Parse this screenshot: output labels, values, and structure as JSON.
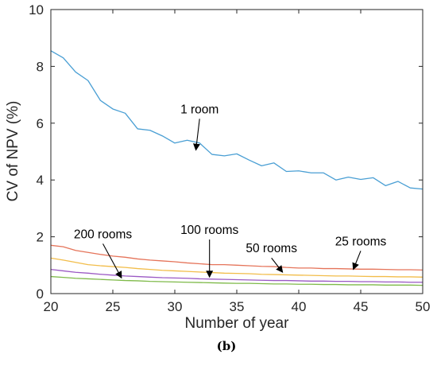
{
  "chart_data": {
    "type": "line",
    "xlabel": "Number of year",
    "ylabel": "CV of NPV (%)",
    "caption": "(b)",
    "xlim": [
      20,
      50
    ],
    "ylim": [
      0,
      10
    ],
    "xticks": [
      20,
      25,
      30,
      35,
      40,
      45,
      50
    ],
    "yticks": [
      0,
      2,
      4,
      6,
      8,
      10
    ],
    "grid": false,
    "x": [
      20,
      21,
      22,
      23,
      24,
      25,
      26,
      27,
      28,
      29,
      30,
      31,
      32,
      33,
      34,
      35,
      36,
      37,
      38,
      39,
      40,
      41,
      42,
      43,
      44,
      45,
      46,
      47,
      48,
      49,
      50
    ],
    "series": [
      {
        "color": "#4a9fd4",
        "values": [
          8.55,
          8.3,
          7.8,
          7.5,
          6.8,
          6.5,
          6.35,
          5.8,
          5.75,
          5.55,
          5.3,
          5.4,
          5.3,
          4.9,
          4.85,
          4.92,
          4.7,
          4.5,
          4.6,
          4.3,
          4.32,
          4.25,
          4.25,
          4.0,
          4.1,
          4.02,
          4.08,
          3.8,
          3.95,
          3.72,
          3.68
        ]
      },
      {
        "color": "#e5745a",
        "values": [
          1.7,
          1.65,
          1.52,
          1.45,
          1.38,
          1.32,
          1.28,
          1.22,
          1.18,
          1.15,
          1.12,
          1.08,
          1.05,
          1.02,
          1.02,
          1.0,
          0.98,
          0.96,
          0.95,
          0.92,
          0.9,
          0.9,
          0.88,
          0.88,
          0.87,
          0.86,
          0.86,
          0.85,
          0.84,
          0.84,
          0.83
        ]
      },
      {
        "color": "#f2bd4a",
        "values": [
          1.25,
          1.18,
          1.1,
          1.02,
          0.98,
          0.95,
          0.92,
          0.88,
          0.85,
          0.82,
          0.8,
          0.78,
          0.76,
          0.74,
          0.72,
          0.71,
          0.7,
          0.68,
          0.67,
          0.66,
          0.65,
          0.64,
          0.63,
          0.62,
          0.62,
          0.61,
          0.6,
          0.6,
          0.59,
          0.59,
          0.58
        ]
      },
      {
        "color": "#9b59c4",
        "values": [
          0.85,
          0.8,
          0.75,
          0.72,
          0.68,
          0.65,
          0.62,
          0.6,
          0.58,
          0.56,
          0.55,
          0.54,
          0.52,
          0.51,
          0.5,
          0.49,
          0.48,
          0.47,
          0.46,
          0.46,
          0.45,
          0.44,
          0.44,
          0.43,
          0.43,
          0.42,
          0.42,
          0.41,
          0.41,
          0.4,
          0.4
        ]
      },
      {
        "color": "#7fba4a",
        "values": [
          0.6,
          0.57,
          0.54,
          0.52,
          0.5,
          0.48,
          0.46,
          0.45,
          0.43,
          0.42,
          0.41,
          0.4,
          0.39,
          0.38,
          0.37,
          0.36,
          0.36,
          0.35,
          0.34,
          0.34,
          0.33,
          0.33,
          0.32,
          0.32,
          0.31,
          0.31,
          0.31,
          0.3,
          0.3,
          0.3,
          0.29
        ]
      }
    ],
    "annotations": [
      {
        "text": "1 room",
        "text_at": [
          32.0,
          6.35
        ],
        "arrow_to": [
          31.7,
          5.05
        ]
      },
      {
        "text": "200 rooms",
        "text_at": [
          24.2,
          1.95
        ],
        "arrow_to": [
          25.7,
          0.55
        ]
      },
      {
        "text": "100 rooms",
        "text_at": [
          32.8,
          2.1
        ],
        "arrow_to": [
          32.8,
          0.58
        ]
      },
      {
        "text": "50 rooms",
        "text_at": [
          37.8,
          1.45
        ],
        "arrow_to": [
          38.7,
          0.75
        ]
      },
      {
        "text": "25 rooms",
        "text_at": [
          45.0,
          1.7
        ],
        "arrow_to": [
          44.4,
          0.85
        ]
      }
    ]
  }
}
